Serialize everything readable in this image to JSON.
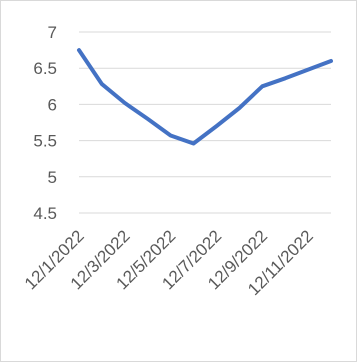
{
  "chart_data": {
    "type": "line",
    "title": "",
    "xlabel": "",
    "ylabel": "",
    "x": [
      "12/1/2022",
      "12/2/2022",
      "12/3/2022",
      "12/4/2022",
      "12/5/2022",
      "12/6/2022",
      "12/7/2022",
      "12/8/2022",
      "12/9/2022",
      "12/10/2022",
      "12/11/2022",
      "12/12/2022"
    ],
    "x_tick_labels": [
      "12/1/2022",
      "12/3/2022",
      "12/5/2022",
      "12/7/2022",
      "12/9/2022",
      "12/11/2022"
    ],
    "series": [
      {
        "values": [
          6.75,
          6.28,
          6.02,
          5.8,
          5.57,
          5.46,
          5.7,
          5.95,
          6.25,
          6.36,
          6.48,
          6.6
        ],
        "color": "#4472c4"
      }
    ],
    "ylim": [
      4.5,
      7
    ],
    "y_tick_labels": [
      "7",
      "6.5",
      "6",
      "5.5",
      "5",
      "4.5"
    ],
    "grid": true,
    "legend": "none"
  }
}
